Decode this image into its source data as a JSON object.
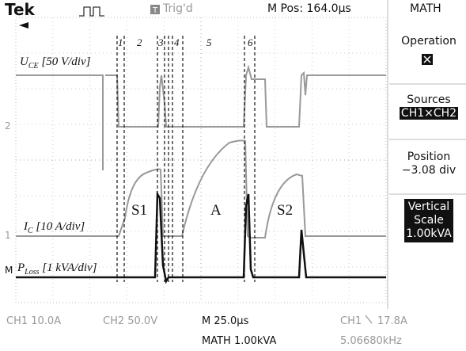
{
  "header": {
    "brand": "Tek",
    "trigger": "Trig'd",
    "position": "M Pos: 164.0µs",
    "menu_title": "MATH"
  },
  "menu": [
    {
      "title": "Operation"
    },
    {
      "title": "Sources",
      "value": "CH1×CH2"
    },
    {
      "title": "Position",
      "value": "−3.08 div"
    },
    {
      "title": "Vertical",
      "value": "Scale",
      "extra": "1.00kVA"
    }
  ],
  "traces": {
    "uce": {
      "symbol": "U",
      "subscript": "CE",
      "scale": "[50 V/div]"
    },
    "ic": {
      "symbol": "I",
      "subscript": "C",
      "scale": "[10 A/div]"
    },
    "ploss": {
      "symbol": "P",
      "subscript": "Loss",
      "scale": "[1 kVA/div]"
    }
  },
  "phases": [
    "1",
    "2",
    "3",
    "4",
    "5",
    "6"
  ],
  "regions": [
    "S1",
    "A",
    "S2"
  ],
  "markers": {
    "ch2": "2",
    "ch1": "1",
    "math": "M"
  },
  "footer": {
    "ch1": "CH1  10.0A",
    "ch2": "CH2  50.0V",
    "timebase": "M 25.0µs",
    "math": "MATH 1.00kVA",
    "trigger_source": "CH1",
    "trigger_level": "17.8A",
    "frequency": "5.06680kHz"
  }
}
